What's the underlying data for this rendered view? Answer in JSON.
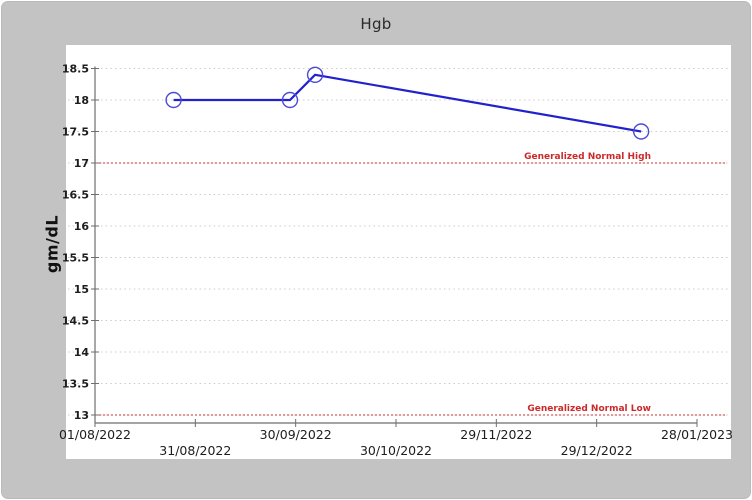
{
  "window": {
    "title": "Hgb"
  },
  "colors": {
    "window_bg": "#c3c3c3",
    "panel_bg": "#ffffff",
    "series_line": "#2222cc",
    "marker_stroke": "#4a4ad8",
    "reference_line": "#cc3333",
    "reference_text": "#cc2a2a",
    "grid": "#cbcbcb",
    "axis": "#6e6e6e",
    "tick_text": "#1d1d1d",
    "title_text": "#2a2a2a"
  },
  "chart_data": {
    "type": "line",
    "title": "Hgb",
    "xlabel": "",
    "ylabel": "gm/dL",
    "unit": "gm/dL",
    "legend": "none",
    "grid": "horizontal-dotted",
    "ylim": [
      13,
      18.5
    ],
    "y_ticks": [
      18.5,
      18,
      17.5,
      17,
      16.5,
      16,
      15.5,
      15,
      14.5,
      14,
      13.5,
      13
    ],
    "xlim_days": [
      0,
      180
    ],
    "x_tick_days": [
      0,
      30,
      60,
      90,
      120,
      150,
      180
    ],
    "x_tick_labels": [
      "01/08/2022",
      "31/08/2022",
      "30/09/2022",
      "30/10/2022",
      "29/11/2022",
      "29/12/2022",
      "28/01/2023"
    ],
    "series": [
      {
        "name": "Hgb",
        "marker": "open-circle",
        "points": [
          {
            "day": 23.5,
            "date_est": "24/08/2022",
            "value": 18.0
          },
          {
            "day": 58.3,
            "date_est": "28/09/2022",
            "value": 18.0
          },
          {
            "day": 65.8,
            "date_est": "06/10/2022",
            "value": 18.4
          },
          {
            "day": 163.3,
            "date_est": "11/01/2023",
            "value": 17.5
          }
        ]
      }
    ],
    "reference_lines": [
      {
        "label": "Generalized Normal High",
        "value": 17
      },
      {
        "label": "Generalized Normal Low",
        "value": 13
      }
    ]
  }
}
